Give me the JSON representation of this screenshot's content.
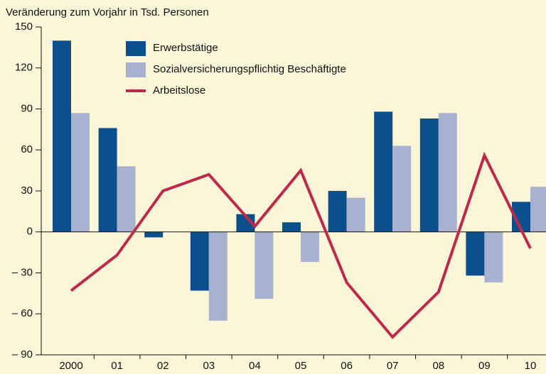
{
  "chart_data": {
    "type": "bar_line",
    "title": "Veränderung zum Vorjahr in Tsd. Personen",
    "categories": [
      "2000",
      "01",
      "02",
      "03",
      "04",
      "05",
      "06",
      "07",
      "08",
      "09",
      "10"
    ],
    "series": [
      {
        "name": "Erwerbstätige",
        "type": "bar",
        "color": "#0b4f8c",
        "values": [
          140,
          76,
          -4,
          -43,
          13,
          7,
          30,
          88,
          83,
          -32,
          22
        ]
      },
      {
        "name": "Sozialversicherungspflichtig Beschäftigte",
        "type": "bar",
        "color": "#a9b1d1",
        "values": [
          87,
          48,
          0,
          -65,
          -49,
          -22,
          25,
          63,
          87,
          -37,
          33
        ]
      },
      {
        "name": "Arbeitslose",
        "type": "line",
        "color": "#c0284a",
        "values": [
          -43,
          -17,
          30,
          42,
          4,
          45,
          -37,
          -77,
          -44,
          56,
          -12
        ]
      }
    ],
    "ylim": [
      -90,
      150
    ],
    "yticks": [
      {
        "value": -90,
        "label": "– 90"
      },
      {
        "value": -60,
        "label": "– 60"
      },
      {
        "value": -30,
        "label": "– 30"
      },
      0,
      30,
      60,
      90,
      120,
      150
    ],
    "legend": "upper left"
  }
}
